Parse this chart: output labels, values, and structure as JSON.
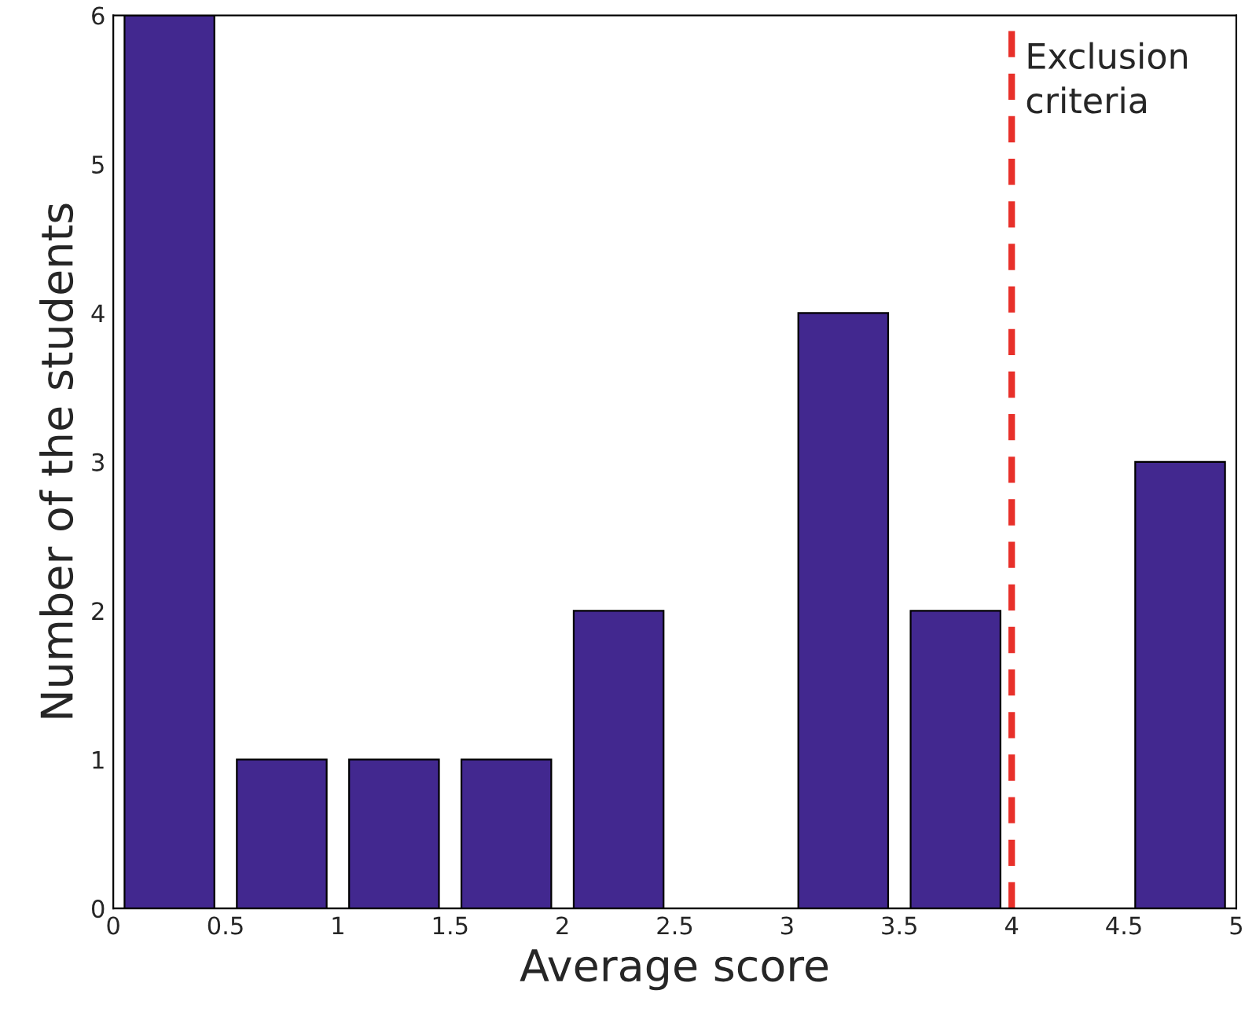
{
  "chart_data": {
    "type": "histogram",
    "xlabel": "Average score",
    "ylabel": "Number of the students",
    "bins": [
      0,
      0.5,
      1,
      1.5,
      2,
      2.5,
      3,
      3.5,
      4,
      4.5,
      5
    ],
    "values": [
      6,
      1,
      1,
      1,
      2,
      0,
      4,
      2,
      0,
      3
    ],
    "color": "#42288f",
    "xlim": [
      0,
      5
    ],
    "xticks": [
      0,
      0.5,
      1,
      1.5,
      2,
      2.5,
      3,
      3.5,
      4,
      4.5,
      5
    ],
    "ylim": [
      0,
      6
    ],
    "yticks": [
      0,
      1,
      2,
      3,
      4,
      5,
      6
    ],
    "grid": false,
    "ref_lines": [
      {
        "axis": "x",
        "value": 4,
        "label": "Exclusion\ncriteria",
        "color": "#e8302a",
        "line_style": "dashed"
      }
    ]
  }
}
